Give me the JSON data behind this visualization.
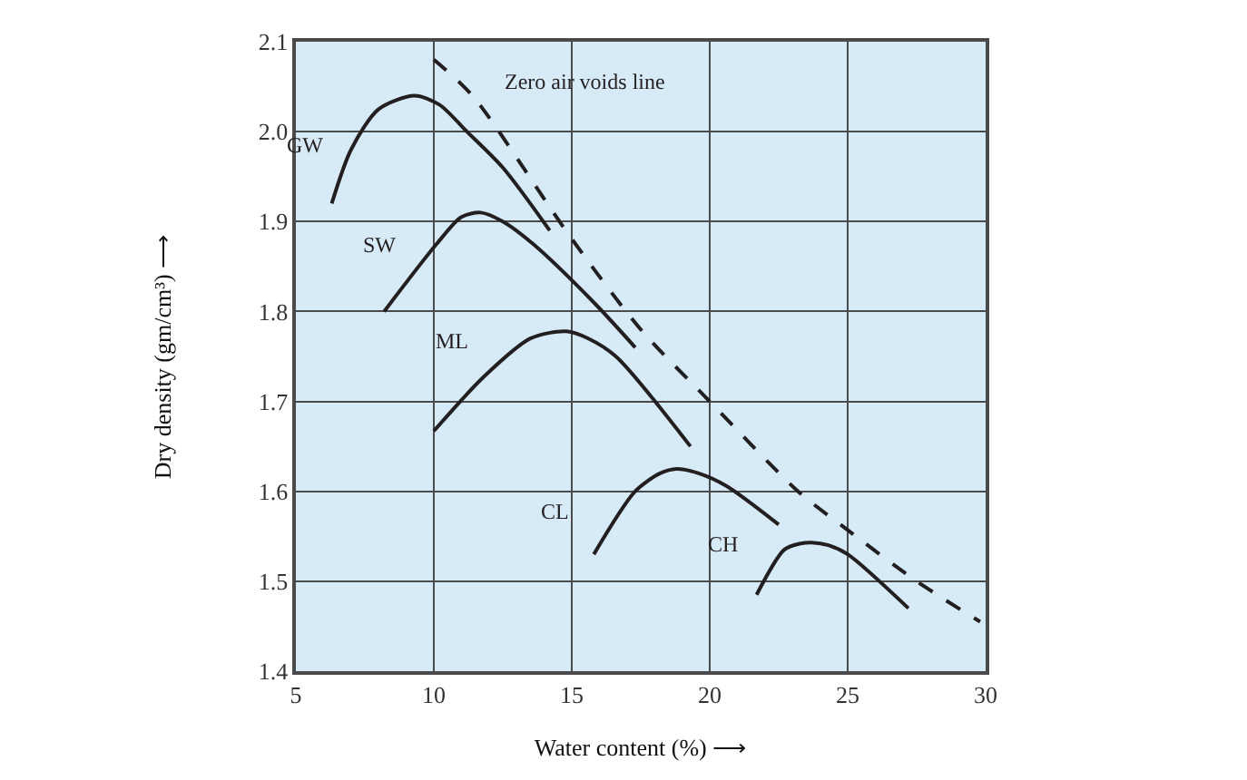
{
  "chart_data": {
    "type": "line",
    "xlabel": "Water content (%) ⟶",
    "ylabel": "Dry density (gm/cm³) ⟶",
    "xlim": [
      5,
      30
    ],
    "xticks": [
      5,
      10,
      15,
      20,
      25,
      30
    ],
    "ylim": [
      1.4,
      2.1
    ],
    "yticks": [
      1.4,
      1.5,
      1.6,
      1.7,
      1.8,
      1.9,
      {
        "value": 2.0,
        "label": "2.0"
      },
      2.1
    ],
    "grid": true,
    "legend": false,
    "marker": "none",
    "series": [
      {
        "name": "GW",
        "color": "#231f20",
        "line_style": "solid",
        "x": [
          6.3,
          7.0,
          8.0,
          9.3,
          10.2,
          11.2,
          12.5,
          14.2
        ],
        "values": [
          1.92,
          1.98,
          2.025,
          2.04,
          2.03,
          2.0,
          1.96,
          1.89
        ]
      },
      {
        "name": "SW",
        "color": "#231f20",
        "line_style": "solid",
        "x": [
          8.2,
          10.1,
          11.0,
          11.7,
          12.5,
          13.6,
          15.8,
          17.3
        ],
        "values": [
          1.8,
          1.875,
          1.905,
          1.91,
          1.9,
          1.875,
          1.81,
          1.76
        ]
      },
      {
        "name": "ML",
        "color": "#231f20",
        "line_style": "solid",
        "x": [
          10.0,
          11.8,
          13.5,
          14.8,
          15.6,
          16.6,
          19.3
        ],
        "values": [
          1.667,
          1.727,
          1.77,
          1.778,
          1.77,
          1.75,
          1.65
        ]
      },
      {
        "name": "CL",
        "color": "#231f20",
        "line_style": "solid",
        "x": [
          15.8,
          17.3,
          18.2,
          18.8,
          19.6,
          20.6,
          22.5
        ],
        "values": [
          1.53,
          1.6,
          1.62,
          1.625,
          1.62,
          1.606,
          1.563
        ]
      },
      {
        "name": "CH",
        "color": "#231f20",
        "line_style": "solid",
        "x": [
          21.7,
          22.7,
          23.3,
          23.7,
          24.3,
          25.0,
          27.2
        ],
        "values": [
          1.485,
          1.535,
          1.542,
          1.543,
          1.54,
          1.53,
          1.47
        ]
      },
      {
        "name": "Zero air voids line",
        "color": "#231f20",
        "line_style": "dashed",
        "x": [
          10.0,
          11.4,
          14.9,
          17.5,
          20.0,
          23.2,
          25.0,
          27.5,
          29.8
        ],
        "values": [
          2.08,
          2.04,
          1.885,
          1.78,
          1.7,
          1.6,
          1.557,
          1.5,
          1.455
        ]
      }
    ]
  }
}
